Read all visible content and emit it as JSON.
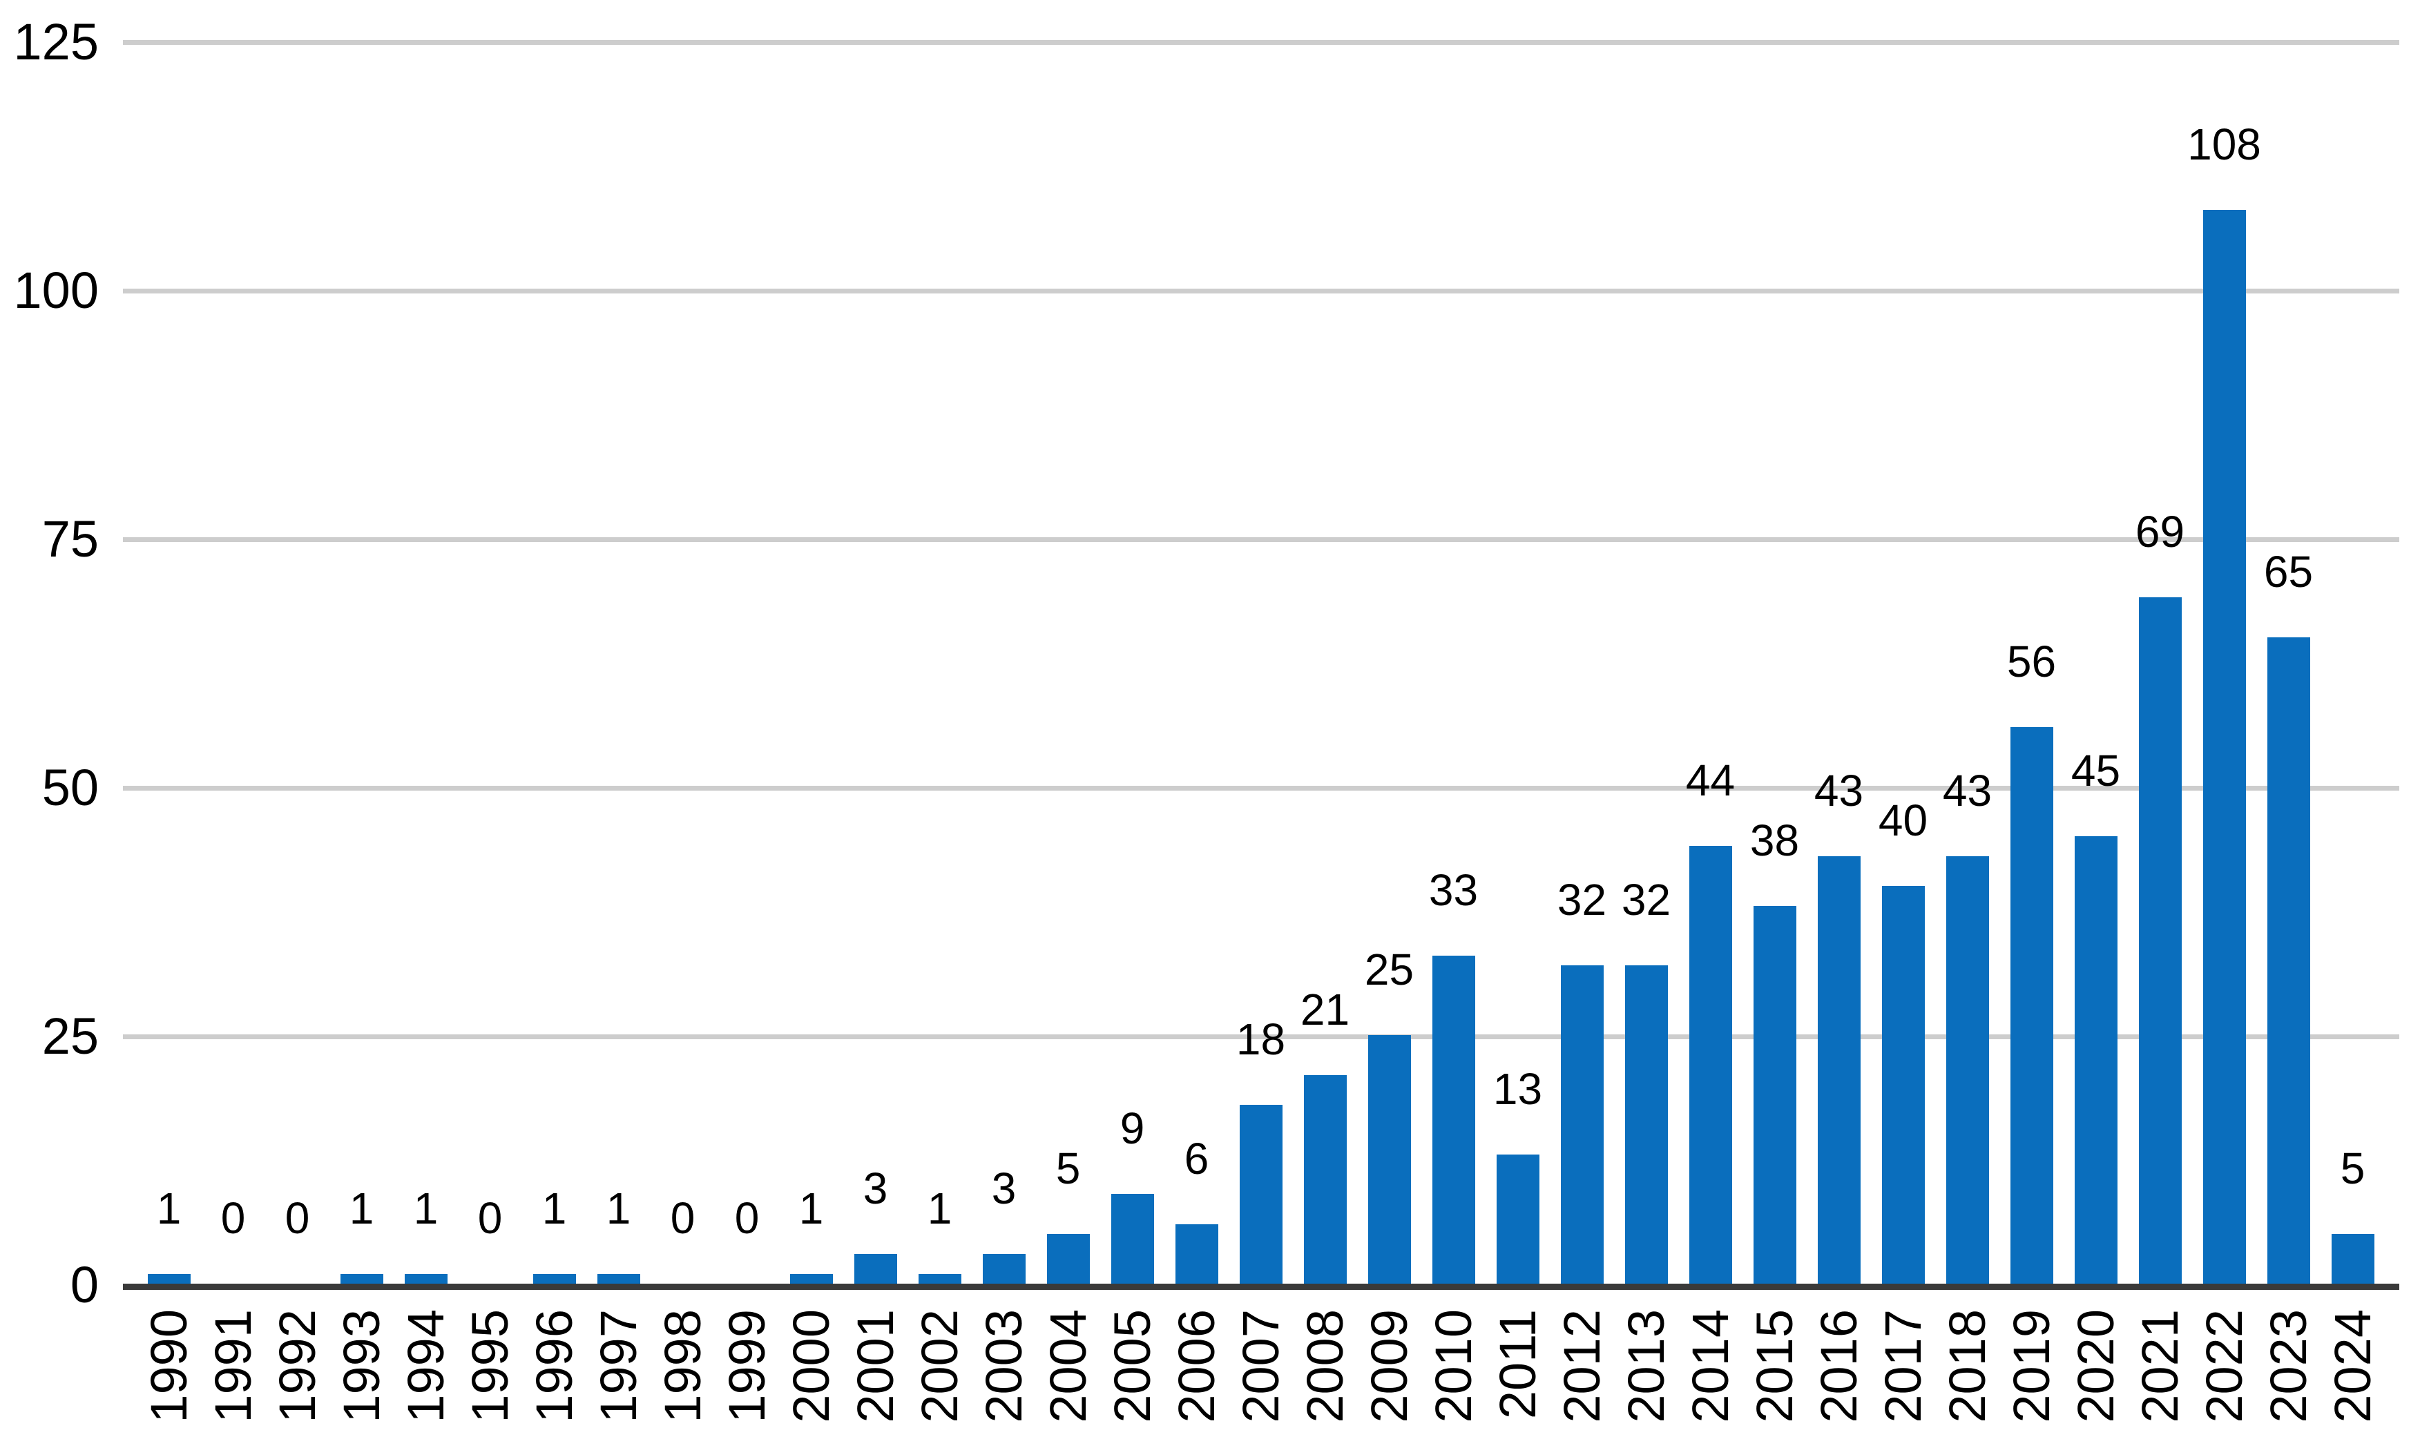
{
  "chart_data": {
    "type": "bar",
    "title": "",
    "xlabel": "",
    "ylabel": "",
    "categories": [
      "1990",
      "1991",
      "1992",
      "1993",
      "1994",
      "1995",
      "1996",
      "1997",
      "1998",
      "1999",
      "2000",
      "2001",
      "2002",
      "2003",
      "2004",
      "2005",
      "2006",
      "2007",
      "2008",
      "2009",
      "2010",
      "2011",
      "2012",
      "2013",
      "2014",
      "2015",
      "2016",
      "2017",
      "2018",
      "2019",
      "2020",
      "2021",
      "2022",
      "2023",
      "2024"
    ],
    "values": [
      1,
      0,
      0,
      1,
      1,
      0,
      1,
      1,
      0,
      0,
      1,
      3,
      1,
      3,
      5,
      9,
      6,
      18,
      21,
      25,
      33,
      13,
      32,
      32,
      44,
      38,
      43,
      40,
      43,
      56,
      45,
      69,
      108,
      65,
      5
    ],
    "value_labels_shown": true,
    "ylim": [
      0,
      125
    ],
    "yticks": [
      0,
      25,
      50,
      75,
      100,
      125
    ],
    "grid": "horizontal",
    "legend_position": "none",
    "colors": {
      "bar": "#0a6ebd",
      "gridline": "#cdcdcd",
      "axis_line": "#3a3a3a",
      "text": "#000000",
      "background": "#ffffff"
    }
  }
}
